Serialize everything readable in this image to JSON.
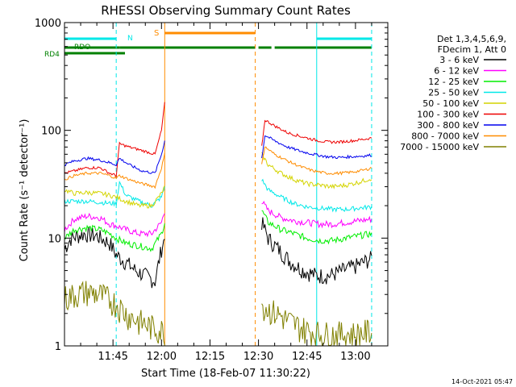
{
  "chart_data": {
    "type": "line",
    "title": "RHESSI Observing Summary Count Rates",
    "xlabel": "Start Time (18-Feb-07 11:30:22)",
    "ylabel": "Count Rate (s⁻¹ detector⁻¹)",
    "y_scale": "log",
    "ylim": [
      1,
      1000
    ],
    "xlim": [
      "11:30",
      "13:10"
    ],
    "x_ticks": [
      {
        "time": "11:45",
        "label": "11:45"
      },
      {
        "time": "12:00",
        "label": "12:00"
      },
      {
        "time": "12:15",
        "label": "12:15"
      },
      {
        "time": "12:30",
        "label": "12:30"
      },
      {
        "time": "12:45",
        "label": "12:45"
      },
      {
        "time": "13:00",
        "label": "13:00"
      }
    ],
    "y_ticks": [
      {
        "value": 1,
        "label": "1"
      },
      {
        "value": 10,
        "label": "10"
      },
      {
        "value": 100,
        "label": "100"
      },
      {
        "value": 1000,
        "label": "1000"
      }
    ],
    "legend_header": [
      "Det 1,3,4,5,6,9,",
      "FDecim 1, Att 0"
    ],
    "legend_position": "top-right",
    "timestamp": "14-Oct-2021 05:47",
    "flag_labels": {
      "n": "N",
      "s": "S",
      "rdo": "RDO",
      "rd4": "RD4"
    },
    "flags": [
      {
        "name": "N",
        "color": "#00e8e8",
        "segments": [
          [
            "11:30",
            "11:46"
          ],
          [
            "12:48",
            "13:05"
          ]
        ]
      },
      {
        "name": "S",
        "color": "#ff8c00",
        "segments": [
          [
            "12:01",
            "12:29"
          ]
        ]
      },
      {
        "name": "RD4",
        "color": "#008000",
        "segments": [
          [
            "11:30",
            "11:47"
          ],
          [
            "11:47",
            "12:29"
          ],
          [
            "12:30",
            "12:34"
          ],
          [
            "12:35",
            "13:05"
          ]
        ]
      }
    ],
    "night_lines": [
      {
        "time": "11:30",
        "style": "solid",
        "color": "#00e8e8"
      },
      {
        "time": "11:46",
        "style": "dashed",
        "color": "#00e8e8"
      },
      {
        "time": "12:01",
        "style": "solid",
        "color": "#ff8c00"
      },
      {
        "time": "12:29",
        "style": "dashed",
        "color": "#ff8c00"
      },
      {
        "time": "12:48",
        "style": "solid",
        "color": "#00e8e8"
      },
      {
        "time": "13:05",
        "style": "dashed",
        "color": "#00e8e8"
      }
    ],
    "data_gap": [
      "12:01",
      "12:31"
    ],
    "series": [
      {
        "name": "3 - 6 keV",
        "color": "#000000",
        "points": [
          [
            "11:30",
            8
          ],
          [
            "11:32",
            10
          ],
          [
            "11:36",
            11
          ],
          [
            "11:40",
            10.5
          ],
          [
            "11:44",
            9
          ],
          [
            "11:46",
            7
          ],
          [
            "11:49",
            6
          ],
          [
            "11:52",
            5
          ],
          [
            "11:55",
            4.5
          ],
          [
            "11:58",
            4
          ],
          [
            "12:00",
            8
          ],
          [
            "12:01",
            10
          ],
          [
            "12:31",
            14
          ],
          [
            "12:33",
            10
          ],
          [
            "12:36",
            8
          ],
          [
            "12:40",
            6
          ],
          [
            "12:44",
            5
          ],
          [
            "12:48",
            4.5
          ],
          [
            "12:52",
            4.5
          ],
          [
            "12:56",
            5
          ],
          [
            "13:00",
            5.5
          ],
          [
            "13:05",
            6.5
          ]
        ]
      },
      {
        "name": "6 - 12 keV",
        "color": "#ff00ff",
        "points": [
          [
            "11:30",
            12
          ],
          [
            "11:33",
            15
          ],
          [
            "11:37",
            16
          ],
          [
            "11:41",
            15.5
          ],
          [
            "11:44",
            13.5
          ],
          [
            "11:46",
            13
          ],
          [
            "11:49",
            12
          ],
          [
            "11:53",
            11
          ],
          [
            "11:57",
            11
          ],
          [
            "12:00",
            14
          ],
          [
            "12:01",
            18
          ],
          [
            "12:31",
            22
          ],
          [
            "12:33",
            18
          ],
          [
            "12:37",
            15.5
          ],
          [
            "12:41",
            14.5
          ],
          [
            "12:45",
            14
          ],
          [
            "12:49",
            13.5
          ],
          [
            "12:53",
            13.5
          ],
          [
            "12:57",
            14
          ],
          [
            "13:01",
            14.5
          ],
          [
            "13:05",
            15
          ]
        ]
      },
      {
        "name": "12 - 25 keV",
        "color": "#00ee00",
        "points": [
          [
            "11:30",
            10
          ],
          [
            "11:33",
            12
          ],
          [
            "11:37",
            12.5
          ],
          [
            "11:41",
            12
          ],
          [
            "11:44",
            11
          ],
          [
            "11:46",
            10
          ],
          [
            "11:49",
            9
          ],
          [
            "11:53",
            8.5
          ],
          [
            "11:57",
            8
          ],
          [
            "12:00",
            11
          ],
          [
            "12:01",
            14
          ],
          [
            "12:31",
            18
          ],
          [
            "12:33",
            14
          ],
          [
            "12:37",
            12
          ],
          [
            "12:41",
            11
          ],
          [
            "12:45",
            10
          ],
          [
            "12:49",
            9.5
          ],
          [
            "12:53",
            9.5
          ],
          [
            "12:57",
            10
          ],
          [
            "13:01",
            10.5
          ],
          [
            "13:05",
            11
          ]
        ]
      },
      {
        "name": "25 - 50 keV",
        "color": "#00e8e8",
        "points": [
          [
            "11:30",
            22
          ],
          [
            "11:33",
            22
          ],
          [
            "11:37",
            22
          ],
          [
            "11:41",
            21.5
          ],
          [
            "11:44",
            21
          ],
          [
            "11:46",
            21
          ],
          [
            "11:47",
            33
          ],
          [
            "11:49",
            25
          ],
          [
            "11:53",
            22
          ],
          [
            "11:57",
            20
          ],
          [
            "12:00",
            24
          ],
          [
            "12:01",
            30
          ],
          [
            "12:31",
            35
          ],
          [
            "12:33",
            28
          ],
          [
            "12:37",
            24
          ],
          [
            "12:41",
            21
          ],
          [
            "12:45",
            19.5
          ],
          [
            "12:49",
            19
          ],
          [
            "12:53",
            18.5
          ],
          [
            "12:57",
            18.5
          ],
          [
            "13:01",
            19
          ],
          [
            "13:05",
            19.5
          ]
        ]
      },
      {
        "name": "50 - 100 keV",
        "color": "#d4d400",
        "points": [
          [
            "11:30",
            28
          ],
          [
            "11:33",
            26
          ],
          [
            "11:37",
            26.5
          ],
          [
            "11:41",
            26
          ],
          [
            "11:44",
            25
          ],
          [
            "11:46",
            24
          ],
          [
            "11:49",
            22
          ],
          [
            "11:53",
            20
          ],
          [
            "11:57",
            20
          ],
          [
            "12:00",
            26
          ],
          [
            "12:01",
            30
          ],
          [
            "12:31",
            60
          ],
          [
            "12:33",
            48
          ],
          [
            "12:37",
            40
          ],
          [
            "12:41",
            35
          ],
          [
            "12:45",
            32
          ],
          [
            "12:49",
            31
          ],
          [
            "12:53",
            30
          ],
          [
            "12:57",
            31
          ],
          [
            "13:01",
            33
          ],
          [
            "13:05",
            36
          ]
        ]
      },
      {
        "name": "100 - 300 keV",
        "color": "#ee0000",
        "points": [
          [
            "11:30",
            40
          ],
          [
            "11:33",
            42
          ],
          [
            "11:37",
            45
          ],
          [
            "11:41",
            45
          ],
          [
            "11:44",
            40
          ],
          [
            "11:46",
            38
          ],
          [
            "11:47",
            75
          ],
          [
            "11:50",
            70
          ],
          [
            "11:54",
            65
          ],
          [
            "11:58",
            60
          ],
          [
            "12:00",
            100
          ],
          [
            "12:01",
            180
          ],
          [
            "12:31",
            70
          ],
          [
            "12:32",
            125
          ],
          [
            "12:35",
            110
          ],
          [
            "12:39",
            95
          ],
          [
            "12:43",
            88
          ],
          [
            "12:47",
            82
          ],
          [
            "12:51",
            78
          ],
          [
            "12:55",
            78
          ],
          [
            "12:59",
            80
          ],
          [
            "13:03",
            83
          ],
          [
            "13:05",
            85
          ]
        ]
      },
      {
        "name": "300 - 800 keV",
        "color": "#0000ee",
        "points": [
          [
            "11:30",
            48
          ],
          [
            "11:33",
            52
          ],
          [
            "11:37",
            55
          ],
          [
            "11:41",
            53
          ],
          [
            "11:44",
            50
          ],
          [
            "11:46",
            48
          ],
          [
            "11:47",
            55
          ],
          [
            "11:50",
            48
          ],
          [
            "11:54",
            42
          ],
          [
            "11:58",
            40
          ],
          [
            "12:00",
            60
          ],
          [
            "12:01",
            80
          ],
          [
            "12:31",
            55
          ],
          [
            "12:32",
            90
          ],
          [
            "12:35",
            80
          ],
          [
            "12:39",
            70
          ],
          [
            "12:43",
            64
          ],
          [
            "12:47",
            60
          ],
          [
            "12:51",
            57
          ],
          [
            "12:55",
            56
          ],
          [
            "12:59",
            57
          ],
          [
            "13:03",
            58
          ],
          [
            "13:05",
            59
          ]
        ]
      },
      {
        "name": "800 - 7000 keV",
        "color": "#ff8c00",
        "points": [
          [
            "11:30",
            35
          ],
          [
            "11:33",
            38
          ],
          [
            "11:37",
            40
          ],
          [
            "11:41",
            40
          ],
          [
            "11:44",
            38
          ],
          [
            "11:46",
            36
          ],
          [
            "11:47",
            38
          ],
          [
            "11:50",
            35
          ],
          [
            "11:54",
            32
          ],
          [
            "11:58",
            30
          ],
          [
            "12:00",
            45
          ],
          [
            "12:01",
            60
          ],
          [
            "12:31",
            50
          ],
          [
            "12:32",
            70
          ],
          [
            "12:35",
            60
          ],
          [
            "12:39",
            52
          ],
          [
            "12:43",
            46
          ],
          [
            "12:47",
            42
          ],
          [
            "12:51",
            40
          ],
          [
            "12:55",
            40
          ],
          [
            "12:59",
            41
          ],
          [
            "13:03",
            43
          ],
          [
            "13:05",
            45
          ]
        ]
      },
      {
        "name": "7000 - 15000 keV",
        "color": "#808000",
        "points": [
          [
            "11:30",
            2.8
          ],
          [
            "11:33",
            3.0
          ],
          [
            "11:37",
            3.2
          ],
          [
            "11:41",
            3.0
          ],
          [
            "11:44",
            2.7
          ],
          [
            "11:46",
            2.5
          ],
          [
            "11:49",
            2.0
          ],
          [
            "11:53",
            1.7
          ],
          [
            "11:57",
            1.5
          ],
          [
            "12:00",
            1.4
          ],
          [
            "12:01",
            1.4
          ],
          [
            "12:31",
            2.5
          ],
          [
            "12:33",
            2.2
          ],
          [
            "12:37",
            1.9
          ],
          [
            "12:41",
            1.6
          ],
          [
            "12:45",
            1.4
          ],
          [
            "12:49",
            1.3
          ],
          [
            "12:53",
            1.3
          ],
          [
            "12:57",
            1.3
          ],
          [
            "13:01",
            1.3
          ],
          [
            "13:05",
            1.4
          ]
        ]
      }
    ]
  }
}
